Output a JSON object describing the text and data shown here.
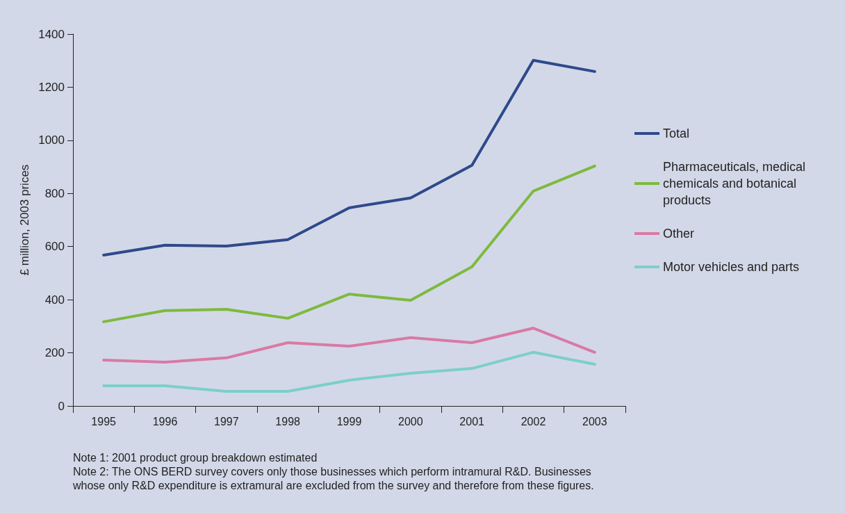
{
  "chart_data": {
    "type": "line",
    "ylabel": "£ million, 2003 prices",
    "categories": [
      "1995",
      "1996",
      "1997",
      "1998",
      "1999",
      "2000",
      "2001",
      "2002",
      "2003"
    ],
    "series": [
      {
        "name": "Total",
        "color": "#2e4a8c",
        "values": [
          568,
          605,
          602,
          626,
          746,
          783,
          906,
          1301,
          1259
        ]
      },
      {
        "name": "Pharmaceuticals, medical chemicals and botanical products",
        "color": "#7dba3e",
        "values": [
          317,
          359,
          364,
          330,
          421,
          398,
          524,
          809,
          903
        ]
      },
      {
        "name": "Other",
        "color": "#d97aa5",
        "values": [
          173,
          165,
          181,
          238,
          225,
          257,
          238,
          293,
          202
        ]
      },
      {
        "name": "Motor vehicles and parts",
        "color": "#7ccfc9",
        "values": [
          76,
          76,
          55,
          55,
          97,
          123,
          141,
          202,
          157
        ]
      }
    ],
    "ylim": [
      0,
      1400
    ],
    "yticks": [
      0,
      200,
      400,
      600,
      800,
      1000,
      1200,
      1400
    ],
    "grid": false,
    "legend": "right",
    "marker": "none",
    "line_style": "solid",
    "annotations": [
      "Note 1: 2001 product group breakdown estimated",
      "Note 2: The ONS BERD survey covers only those businesses which perform intramural R&D. Businesses whose only R&D expenditure is extramural are excluded from the survey and therefore from these figures."
    ]
  }
}
